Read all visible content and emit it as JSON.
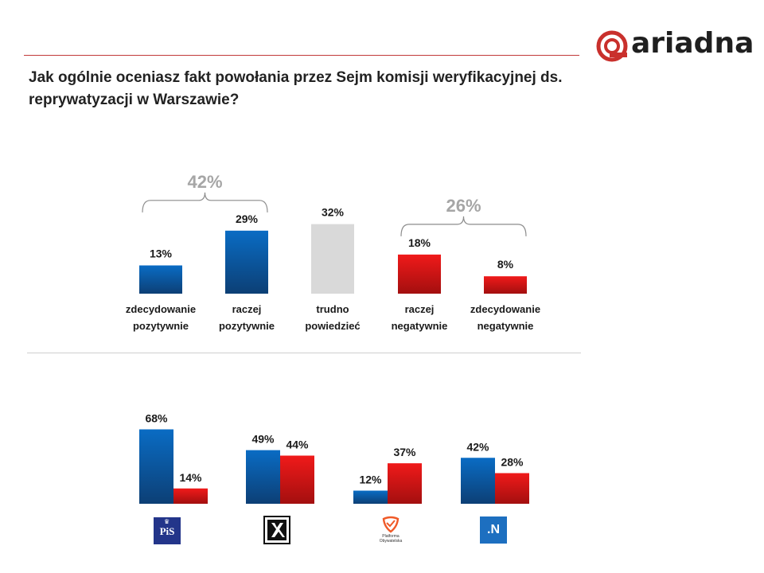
{
  "brand": {
    "name": "ariadna",
    "color": "#c9302c"
  },
  "question": "Jak ogólnie oceniasz fakt powołania przez Sejm komisji weryfikacyjnej ds. reprywatyzacji w Warszawie?",
  "colors": {
    "positive": "#0a6cc4",
    "positive_dark": "#0c3f75",
    "neutral": "#d9d9d9",
    "negative": "#f01a1a",
    "negative_dark": "#a30f0f",
    "group_label": "#a6a6a6"
  },
  "chart_data": [
    {
      "type": "bar",
      "categories": [
        "zdecydowanie pozytywnie",
        "raczej pozytywnie",
        "trudno powiedzieć",
        "raczej negatywnie",
        "zdecydowanie negatywnie"
      ],
      "category_lines": [
        [
          "zdecydowanie",
          "pozytywnie"
        ],
        [
          "raczej",
          "pozytywnie"
        ],
        [
          "trudno",
          "powiedzieć"
        ],
        [
          "raczej",
          "negatywnie"
        ],
        [
          "zdecydowanie",
          "negatywnie"
        ]
      ],
      "values": [
        13,
        29,
        32,
        18,
        8
      ],
      "value_labels": [
        "13%",
        "29%",
        "32%",
        "18%",
        "8%"
      ],
      "groups": [
        {
          "label": "42%",
          "value": 42,
          "covers": [
            0,
            1
          ]
        },
        {
          "label": "26%",
          "value": 26,
          "covers": [
            3,
            4
          ]
        }
      ],
      "ylim": [
        0,
        40
      ]
    },
    {
      "type": "bar",
      "categories": [
        "PiS",
        "Kukiz'15",
        "Platforma Obywatelska",
        "Nowoczesna"
      ],
      "series": [
        {
          "values": [
            68,
            49,
            12,
            42
          ],
          "value_labels": [
            "68%",
            "49%",
            "12%",
            "42%"
          ]
        },
        {
          "values": [
            14,
            44,
            37,
            28
          ],
          "value_labels": [
            "14%",
            "44%",
            "37%",
            "28%"
          ]
        }
      ],
      "ylim": [
        0,
        75
      ]
    }
  ],
  "party_logos": {
    "pis": {
      "text": "PiS"
    },
    "kukiz": {
      "text": ""
    },
    "po": {
      "text": "Platforma Obywatelska"
    },
    "n": {
      "text": ".N"
    }
  }
}
